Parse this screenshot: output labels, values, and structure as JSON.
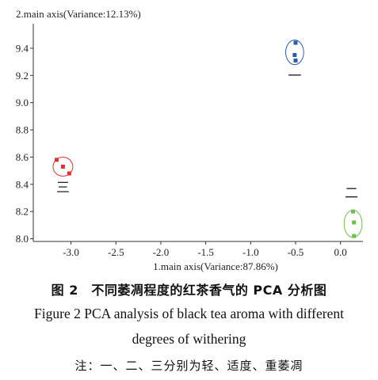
{
  "chart_data": {
    "type": "scatter",
    "ylabel": "2.main axis(Variance:12.13%)",
    "xlabel": "1.main axis(Variance:87.86%)",
    "xlim": [
      -3.42,
      0.25
    ],
    "ylim": [
      7.98,
      9.58
    ],
    "xticks": [
      -3.0,
      -2.5,
      -2.0,
      -1.5,
      -1.0,
      -0.5,
      0.0
    ],
    "xtick_labels": [
      "-3.0",
      "-2.5",
      "-2.0",
      "-1.5",
      "-1.0",
      "-0.5",
      "0.0"
    ],
    "yticks": [
      8.0,
      8.2,
      8.4,
      8.6,
      8.8,
      9.0,
      9.2,
      9.4
    ],
    "ytick_labels": [
      "8.0",
      "8.2",
      "8.4",
      "8.6",
      "8.8",
      "9.0",
      "9.2",
      "9.4"
    ],
    "grid": false,
    "legend": "none",
    "series": [
      {
        "name": "一",
        "color": "#2a5caa",
        "points": [
          [
            -0.5,
            9.44
          ],
          [
            -0.51,
            9.35
          ],
          [
            -0.5,
            9.31
          ]
        ],
        "ellipse": {
          "cx": -0.51,
          "cy": 9.37,
          "rx": 0.1,
          "ry": 0.09
        }
      },
      {
        "name": "二",
        "color": "#6cc04a",
        "points": [
          [
            0.14,
            8.2
          ],
          [
            0.15,
            8.12
          ],
          [
            0.15,
            8.02
          ]
        ],
        "ellipse": {
          "cx": 0.14,
          "cy": 8.11,
          "rx": 0.1,
          "ry": 0.1
        }
      },
      {
        "name": "三",
        "color": "#e52e2e",
        "points": [
          [
            -3.16,
            8.58
          ],
          [
            -3.09,
            8.53
          ],
          [
            -3.02,
            8.48
          ]
        ],
        "ellipse": {
          "cx": -3.09,
          "cy": 8.53,
          "rx": 0.11,
          "ry": 0.07
        }
      }
    ]
  },
  "caption": {
    "zh": "图 2　不同萎凋程度的红茶香气的 PCA 分析图",
    "en_line1": "Figure 2    PCA analysis of black tea aroma with different",
    "en_line2": "degrees of withering",
    "note": "注：一、二、三分别为轻、适度、重萎凋"
  }
}
